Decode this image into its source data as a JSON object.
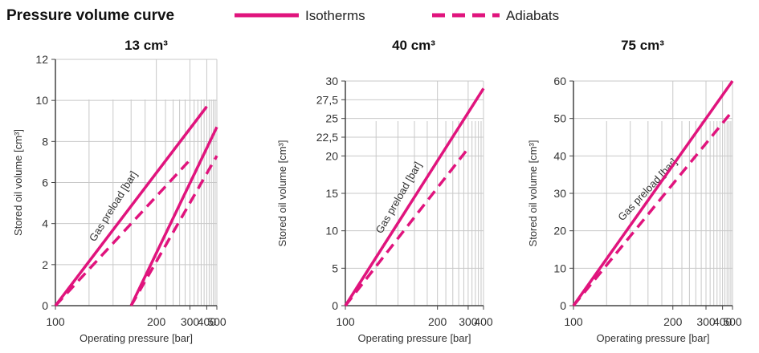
{
  "header": {
    "title": "Pressure volume curve",
    "legend": [
      {
        "label": "Isotherms",
        "style": "solid"
      },
      {
        "label": "Adiabats",
        "style": "dashed"
      }
    ]
  },
  "colors": {
    "curve": "#e0147d",
    "grid": "#c8c8c8",
    "axis": "#444444"
  },
  "chart_data": [
    {
      "type": "line",
      "title": "13 cm³",
      "xlabel": "Operating pressure [bar]",
      "ylabel": "Stored oil volume [cm³]",
      "x_scale": "reciprocal",
      "xlim": [
        100,
        500
      ],
      "ylim": [
        0,
        12
      ],
      "x_ticks": [
        100,
        200,
        300,
        400,
        500
      ],
      "x_tick_labels": [
        "100",
        "200",
        "300",
        "400",
        "500"
      ],
      "y_ticks": [
        0,
        2,
        4,
        6,
        8,
        10,
        12
      ],
      "y_tick_labels": [
        "0",
        "2",
        "4",
        "6",
        "8",
        "10",
        "12"
      ],
      "annotation": "Gas preload [bar]",
      "series": [
        {
          "style": "solid",
          "x": [
            100,
            400
          ],
          "y": [
            0,
            9.7
          ]
        },
        {
          "style": "dashed",
          "x": [
            100,
            300
          ],
          "y": [
            0,
            7.1
          ]
        },
        {
          "style": "solid",
          "x": [
            160,
            500
          ],
          "y": [
            0,
            8.7
          ]
        },
        {
          "style": "dashed",
          "x": [
            160,
            500
          ],
          "y": [
            0,
            7.3
          ]
        }
      ]
    },
    {
      "type": "line",
      "title": "40 cm³",
      "xlabel": "Operating pressure [bar]",
      "ylabel": "Stored oil volume [cm³]",
      "x_scale": "reciprocal",
      "xlim": [
        100,
        400
      ],
      "ylim": [
        0,
        30
      ],
      "x_ticks": [
        100,
        200,
        300,
        400
      ],
      "x_tick_labels": [
        "100",
        "200",
        "300",
        "400"
      ],
      "y_ticks": [
        0,
        5,
        10,
        15,
        20,
        22.5,
        25,
        27.5,
        30
      ],
      "y_tick_labels": [
        "0",
        "5",
        "10",
        "15",
        "20",
        "22,5",
        "25",
        "27,5",
        "30"
      ],
      "annotation": "Gas preload [bar]",
      "series": [
        {
          "style": "solid",
          "x": [
            100,
            400
          ],
          "y": [
            0,
            29
          ]
        },
        {
          "style": "dashed",
          "x": [
            100,
            300
          ],
          "y": [
            0,
            21
          ]
        }
      ]
    },
    {
      "type": "line",
      "title": "75 cm³",
      "xlabel": "Operating pressure [bar]",
      "ylabel": "Stored oil volume [cm³]",
      "x_scale": "reciprocal",
      "xlim": [
        100,
        500
      ],
      "ylim": [
        0,
        60
      ],
      "x_ticks": [
        100,
        200,
        300,
        400,
        500
      ],
      "x_tick_labels": [
        "100",
        "200",
        "300",
        "400",
        "500"
      ],
      "y_ticks": [
        0,
        10,
        20,
        30,
        40,
        50,
        60
      ],
      "y_tick_labels": [
        "0",
        "10",
        "20",
        "30",
        "40",
        "50",
        "60"
      ],
      "annotation": "Gas preload [bar]",
      "series": [
        {
          "style": "solid",
          "x": [
            100,
            500
          ],
          "y": [
            0,
            60
          ]
        },
        {
          "style": "dashed",
          "x": [
            100,
            500
          ],
          "y": [
            0,
            52
          ]
        }
      ]
    }
  ]
}
